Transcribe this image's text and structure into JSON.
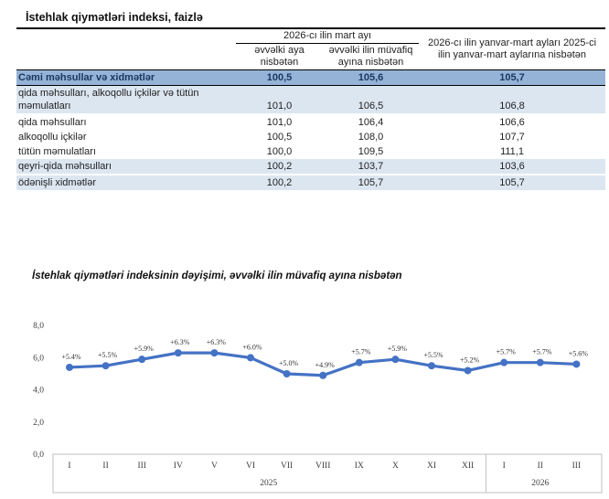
{
  "table": {
    "title": "İstehlak qiymətləri indeksi, faizlə",
    "col_group_header": "2026-cı ilin mart ayı",
    "col2_header": "əvvəlki aya nisbətən",
    "col3_header": "əvvəlki ilin müvafiq ayına nisbətən",
    "col4_header": "2026-cı ilin yanvar-mart ayları 2025-ci ilin yanvar-mart aylarına nisbətən",
    "rows": [
      {
        "label": "Cəmi məhsullar və xidmətlər",
        "values": [
          "100,5",
          "105,6",
          "105,7"
        ]
      },
      {
        "label": "qida məhsulları, alkoqollu içkilər və tütün məmulatları",
        "values": [
          "101,0",
          "106,5",
          "106,8"
        ]
      },
      {
        "label": "qida məhsulları",
        "values": [
          "101,0",
          "106,4",
          "106,6"
        ]
      },
      {
        "label": "alkoqollu içkilər",
        "values": [
          "100,5",
          "108,0",
          "107,7"
        ]
      },
      {
        "label": "tütün məmulatları",
        "values": [
          "100,0",
          "109,5",
          "111,1"
        ]
      },
      {
        "label": "qeyri-qida məhsulları",
        "values": [
          "100,2",
          "103,7",
          "103,6"
        ]
      },
      {
        "label": "ödənişli xidmətlər",
        "values": [
          "100,2",
          "105,7",
          "105,7"
        ]
      }
    ]
  },
  "chart_data": {
    "type": "line",
    "title": "İstehlak qiymətləri indeksinin dəyişimi, əvvəlki ilin müvafiq ayına nisbətən",
    "categories": [
      "I",
      "II",
      "III",
      "IV",
      "V",
      "VI",
      "VII",
      "VIII",
      "IX",
      "X",
      "XI",
      "XII",
      "I",
      "II",
      "III"
    ],
    "year_groups": [
      {
        "label": "2025",
        "count": 12
      },
      {
        "label": "2026",
        "count": 3
      }
    ],
    "values": [
      5.4,
      5.5,
      5.9,
      6.3,
      6.3,
      6.0,
      5.0,
      4.9,
      5.7,
      5.9,
      5.5,
      5.2,
      5.7,
      5.7,
      5.6
    ],
    "point_labels": [
      "+5.4%",
      "+5.5%",
      "+5.9%",
      "+6.3%",
      "+6.3%",
      "+6.0%",
      "+5.0%",
      "+4.9%",
      "+5.7%",
      "+5.9%",
      "+5.5%",
      "+5.2%",
      "+5.7%",
      "+5.7%",
      "+5.6%"
    ],
    "ylim": [
      0,
      8
    ],
    "yticks": [
      0,
      2,
      4,
      6,
      8
    ],
    "ytick_labels": [
      "0,0",
      "2,0",
      "4,0",
      "6,0",
      "8,0"
    ],
    "xlabel": "",
    "ylabel": "",
    "grid": false,
    "legend": "none",
    "line_color": "#4472C4"
  },
  "colors": {
    "chart_line": "#4472C4",
    "total_row_bg": "#95B3D7",
    "band_row_bg": "#DCE6F1",
    "axis_gray": "#BFBFBF"
  }
}
